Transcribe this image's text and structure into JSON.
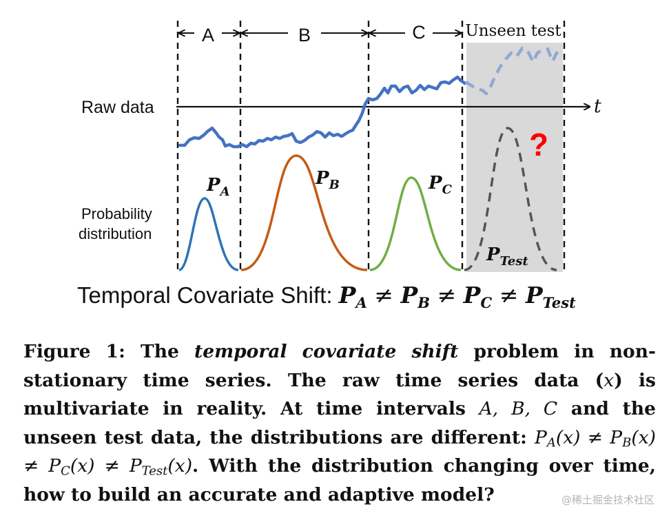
{
  "intervals": {
    "a": "A",
    "b": "B",
    "c": "C",
    "unseen": "Unseen test"
  },
  "axis": {
    "raw_label": "Raw data",
    "time_label": "t"
  },
  "distribution": {
    "label_line1": "Probability",
    "label_line2": "distribution",
    "question_mark": "?",
    "p_symbol": "P",
    "sub_a": "A",
    "sub_b": "B",
    "sub_c": "C",
    "sub_test": "Test"
  },
  "shift": {
    "prefix": "Temporal Covariate Shift: ",
    "neq": " ≠ "
  },
  "caption": {
    "l1_a": "Figure 1: The ",
    "l1_it": "temporal covariate shift",
    "l1_b": " problem in non-stationary time series. The raw time series data (",
    "x": "x",
    "l1_c": ") is multivariate in reality. At time intervals ",
    "intervals": "A, B, C",
    "l1_d": " and the unseen test data, the distributions are different: ",
    "pa": "P",
    "sa": "A",
    "arg": "(x)",
    "neq": " ≠ ",
    "sb": "B",
    "sc": "C",
    "stest": "Test",
    "l1_e": ". With the distribution changing over time, how to build an accurate and adaptive model?"
  },
  "watermark": "@稀土掘金技术社区",
  "colors": {
    "raw_series": "#4472c4",
    "unseen_series": "#8fa8d6",
    "dist_a": "#2e74b5",
    "dist_b": "#c55a11",
    "dist_c": "#70ad47",
    "dist_test": "#555555",
    "shade": "#d9d9d9",
    "question": "#ff0000"
  }
}
